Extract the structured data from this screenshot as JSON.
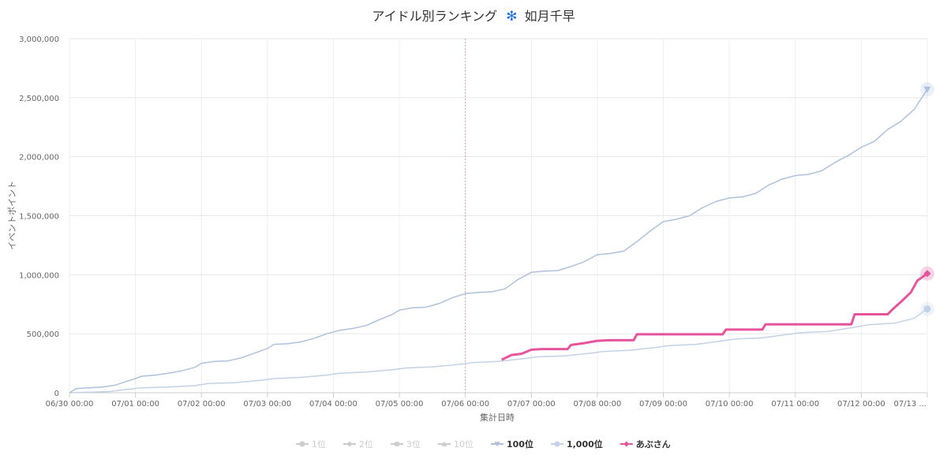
{
  "chart_data": {
    "type": "line",
    "title": "アイドル別ランキング",
    "title_icon": "✻",
    "title_name": "如月千早",
    "title_icon_color": "#1f6feb",
    "xlabel": "集計日時",
    "ylabel": "イベントポイント",
    "ylim": [
      0,
      3000000
    ],
    "y_ticks": [
      0,
      500000,
      1000000,
      1500000,
      2000000,
      2500000,
      3000000
    ],
    "y_tick_labels": [
      "0",
      "500,000",
      "1,000,000",
      "1,500,000",
      "2,000,000",
      "2,500,000",
      "3,000,000"
    ],
    "x_range": [
      "06/30 00:00",
      "07/13 00:00"
    ],
    "x_ticks": [
      "06/30 00:00",
      "07/01 00:00",
      "07/02 00:00",
      "07/03 00:00",
      "07/04 00:00",
      "07/05 00:00",
      "07/06 00:00",
      "07/07 00:00",
      "07/08 00:00",
      "07/09 00:00",
      "07/10 00:00",
      "07/11 00:00",
      "07/12 00:00",
      "07/13 ..."
    ],
    "x_max_day": 13.0,
    "reference_line_day": 6.0,
    "grid": true,
    "legend_placement": "bottom",
    "series": [
      {
        "name": "1位",
        "visible": false,
        "marker": "circle",
        "color": "#bdbdbd",
        "points": []
      },
      {
        "name": "2位",
        "visible": false,
        "marker": "diamond",
        "color": "#bdbdbd",
        "points": []
      },
      {
        "name": "3位",
        "visible": false,
        "marker": "square",
        "color": "#bdbdbd",
        "points": []
      },
      {
        "name": "10位",
        "visible": false,
        "marker": "triangle",
        "color": "#bdbdbd",
        "points": []
      },
      {
        "name": "100位",
        "visible": true,
        "marker": "triangle-down",
        "color": "#aec1dd",
        "points": [
          [
            0,
            0
          ],
          [
            0.1,
            35000
          ],
          [
            0.3,
            42000
          ],
          [
            0.5,
            48000
          ],
          [
            0.7,
            65000
          ],
          [
            0.8,
            85000
          ],
          [
            1.0,
            120000
          ],
          [
            1.1,
            140000
          ],
          [
            1.3,
            150000
          ],
          [
            1.5,
            165000
          ],
          [
            1.7,
            185000
          ],
          [
            1.9,
            215000
          ],
          [
            2.0,
            250000
          ],
          [
            2.2,
            265000
          ],
          [
            2.4,
            270000
          ],
          [
            2.6,
            295000
          ],
          [
            2.8,
            335000
          ],
          [
            3.0,
            375000
          ],
          [
            3.1,
            410000
          ],
          [
            3.3,
            415000
          ],
          [
            3.5,
            430000
          ],
          [
            3.7,
            460000
          ],
          [
            3.9,
            500000
          ],
          [
            4.1,
            530000
          ],
          [
            4.3,
            545000
          ],
          [
            4.5,
            570000
          ],
          [
            4.7,
            620000
          ],
          [
            4.9,
            665000
          ],
          [
            5.0,
            700000
          ],
          [
            5.2,
            720000
          ],
          [
            5.4,
            725000
          ],
          [
            5.6,
            755000
          ],
          [
            5.8,
            805000
          ],
          [
            6.0,
            840000
          ],
          [
            6.2,
            850000
          ],
          [
            6.4,
            855000
          ],
          [
            6.6,
            880000
          ],
          [
            6.8,
            960000
          ],
          [
            7.0,
            1020000
          ],
          [
            7.2,
            1030000
          ],
          [
            7.4,
            1035000
          ],
          [
            7.6,
            1070000
          ],
          [
            7.8,
            1110000
          ],
          [
            8.0,
            1170000
          ],
          [
            8.2,
            1180000
          ],
          [
            8.4,
            1200000
          ],
          [
            8.6,
            1280000
          ],
          [
            8.8,
            1370000
          ],
          [
            9.0,
            1450000
          ],
          [
            9.2,
            1470000
          ],
          [
            9.4,
            1500000
          ],
          [
            9.6,
            1570000
          ],
          [
            9.8,
            1620000
          ],
          [
            10.0,
            1650000
          ],
          [
            10.2,
            1660000
          ],
          [
            10.4,
            1690000
          ],
          [
            10.6,
            1760000
          ],
          [
            10.8,
            1810000
          ],
          [
            11.0,
            1840000
          ],
          [
            11.2,
            1850000
          ],
          [
            11.4,
            1880000
          ],
          [
            11.6,
            1950000
          ],
          [
            11.8,
            2010000
          ],
          [
            12.0,
            2080000
          ],
          [
            12.2,
            2130000
          ],
          [
            12.4,
            2230000
          ],
          [
            12.6,
            2300000
          ],
          [
            12.8,
            2400000
          ],
          [
            13.0,
            2570000
          ]
        ]
      },
      {
        "name": "1,000位",
        "visible": true,
        "marker": "circle",
        "color": "#c3d2e7",
        "points": [
          [
            0,
            0
          ],
          [
            0.3,
            5000
          ],
          [
            0.6,
            10000
          ],
          [
            0.9,
            30000
          ],
          [
            1.1,
            42000
          ],
          [
            1.5,
            48000
          ],
          [
            1.9,
            60000
          ],
          [
            2.1,
            78000
          ],
          [
            2.5,
            85000
          ],
          [
            2.9,
            105000
          ],
          [
            3.1,
            120000
          ],
          [
            3.5,
            130000
          ],
          [
            3.9,
            150000
          ],
          [
            4.1,
            165000
          ],
          [
            4.5,
            175000
          ],
          [
            4.9,
            195000
          ],
          [
            5.1,
            210000
          ],
          [
            5.5,
            220000
          ],
          [
            5.9,
            240000
          ],
          [
            6.1,
            255000
          ],
          [
            6.5,
            265000
          ],
          [
            6.9,
            290000
          ],
          [
            7.1,
            305000
          ],
          [
            7.5,
            312000
          ],
          [
            7.9,
            335000
          ],
          [
            8.1,
            350000
          ],
          [
            8.5,
            360000
          ],
          [
            8.9,
            385000
          ],
          [
            9.1,
            400000
          ],
          [
            9.5,
            410000
          ],
          [
            9.9,
            440000
          ],
          [
            10.1,
            455000
          ],
          [
            10.5,
            465000
          ],
          [
            10.9,
            495000
          ],
          [
            11.1,
            510000
          ],
          [
            11.5,
            520000
          ],
          [
            11.9,
            555000
          ],
          [
            12.1,
            575000
          ],
          [
            12.5,
            590000
          ],
          [
            12.8,
            630000
          ],
          [
            13.0,
            710000
          ]
        ]
      },
      {
        "name": "あぶさん",
        "visible": true,
        "marker": "diamond",
        "color": "#e5549c",
        "points": [
          [
            6.55,
            280000
          ],
          [
            6.7,
            320000
          ],
          [
            6.85,
            330000
          ],
          [
            7.0,
            365000
          ],
          [
            7.15,
            370000
          ],
          [
            7.55,
            370000
          ],
          [
            7.6,
            405000
          ],
          [
            7.8,
            420000
          ],
          [
            8.0,
            440000
          ],
          [
            8.2,
            445000
          ],
          [
            8.55,
            445000
          ],
          [
            8.6,
            495000
          ],
          [
            9.9,
            495000
          ],
          [
            9.95,
            535000
          ],
          [
            10.5,
            535000
          ],
          [
            10.55,
            580000
          ],
          [
            11.85,
            580000
          ],
          [
            11.9,
            665000
          ],
          [
            12.4,
            665000
          ],
          [
            12.5,
            720000
          ],
          [
            12.6,
            770000
          ],
          [
            12.75,
            850000
          ],
          [
            12.85,
            950000
          ],
          [
            13.0,
            1010000
          ]
        ]
      }
    ]
  }
}
